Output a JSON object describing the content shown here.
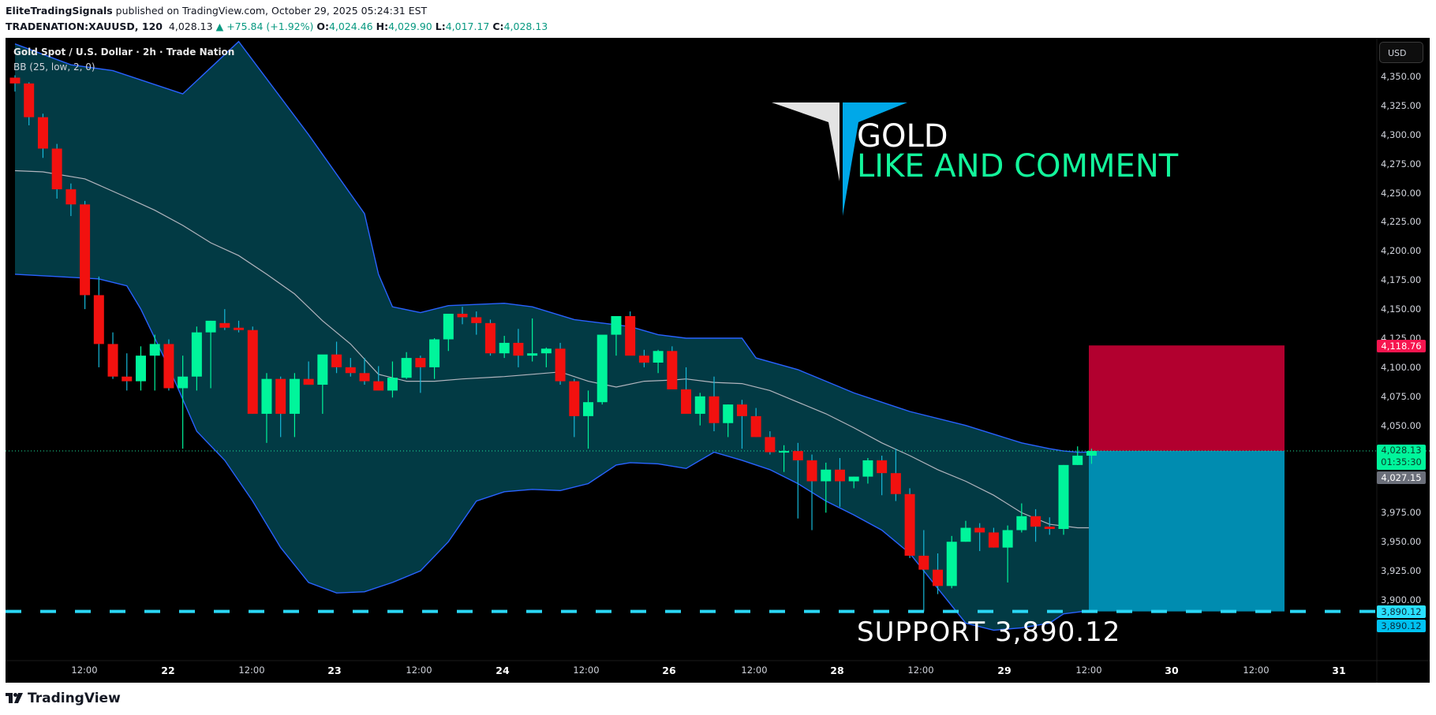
{
  "header": {
    "author": "EliteTradingSignals",
    "published": "published on TradingView.com, October 29, 2025 05:24:31 EST",
    "symbol": "TRADENATION:XAUUSD, 120",
    "last": "4,028.13",
    "change": "+75.84 (+1.92%)",
    "o_label": "O:",
    "o": "4,024.46",
    "h_label": "H:",
    "h": "4,029.90",
    "l_label": "L:",
    "l": "4,017.17",
    "c_label": "C:",
    "c": "4,028.13"
  },
  "legend": {
    "title": "Gold Spot / U.S. Dollar · 2h · Trade Nation",
    "indicator": "BB (25, low, 2, 0)"
  },
  "price_axis": {
    "currency": "USD",
    "ticks": [
      "4,350.00",
      "4,325.00",
      "4,300.00",
      "4,275.00",
      "4,250.00",
      "4,225.00",
      "4,200.00",
      "4,175.00",
      "4,150.00",
      "4,125.00",
      "4,100.00",
      "4,075.00",
      "4,050.00",
      "3,975.00",
      "3,950.00",
      "3,925.00",
      "3,900.00"
    ],
    "tags": {
      "stop": "4,118.76",
      "last_price": "4,028.13",
      "countdown": "01:35:30",
      "bb_upper": "4,027.15",
      "support_1": "3,890.12",
      "support_2": "3,890.12"
    }
  },
  "time_axis": {
    "labels": [
      "12:00",
      "22",
      "12:00",
      "23",
      "12:00",
      "24",
      "12:00",
      "26",
      "12:00",
      "28",
      "12:00",
      "29",
      "12:00",
      "30",
      "12:00",
      "31"
    ]
  },
  "overlay": {
    "logo_line1": "GOLD",
    "logo_line2": "LIKE AND COMMENT",
    "support_text": "SUPPORT   3,890.12"
  },
  "footer": {
    "brand": "TradingView"
  },
  "colors": {
    "up": "#00f59b",
    "down": "#f2110f",
    "wick": "#16b8d8",
    "bb_fill": "#023a44",
    "bb_line": "#2962ff",
    "basis": "#b2b5be",
    "stop_zone": "#b2002f",
    "target_zone": "#008cb0",
    "support_line": "#2ad7f5"
  },
  "chart_data": {
    "type": "candlestick",
    "title": "Gold Spot / U.S. Dollar · 2h · Trade Nation",
    "symbol": "TRADENATION:XAUUSD",
    "interval": "2h",
    "ylim": [
      3868,
      4370
    ],
    "yticks": [
      3900,
      3925,
      3950,
      3975,
      4050,
      4075,
      4100,
      4125,
      4150,
      4175,
      4200,
      4225,
      4250,
      4275,
      4300,
      4325,
      4350
    ],
    "xlabels": [
      "12:00",
      "22",
      "12:00",
      "23",
      "12:00",
      "24",
      "12:00",
      "26",
      "12:00",
      "28",
      "12:00",
      "29",
      "12:00",
      "30",
      "12:00",
      "31"
    ],
    "indicator": {
      "name": "Bollinger Bands",
      "params": "25, low, 2, 0"
    },
    "last_price": 4028.13,
    "change": 75.84,
    "change_pct": 1.92,
    "ohlc_last": {
      "open": 4024.46,
      "high": 4029.9,
      "low": 4017.17,
      "close": 4028.13
    },
    "annotations": [
      {
        "type": "support",
        "price": 3890.12,
        "label": "SUPPORT 3,890.12"
      },
      {
        "type": "short_position",
        "entry": 4028.13,
        "stop": 4118.76,
        "target": 3890.12
      },
      {
        "type": "text",
        "label": "GOLD"
      },
      {
        "type": "text",
        "label": "LIKE AND COMMENT"
      }
    ],
    "candles": [
      [
        4349,
        4351,
        4337,
        4344
      ],
      [
        4344,
        4345,
        4308,
        4315
      ],
      [
        4315,
        4318,
        4280,
        4288
      ],
      [
        4288,
        4292,
        4245,
        4253
      ],
      [
        4253,
        4258,
        4230,
        4240
      ],
      [
        4240,
        4243,
        4150,
        4162
      ],
      [
        4162,
        4178,
        4100,
        4120
      ],
      [
        4120,
        4130,
        4090,
        4092
      ],
      [
        4092,
        4112,
        4080,
        4088
      ],
      [
        4088,
        4118,
        4080,
        4110
      ],
      [
        4110,
        4128,
        4080,
        4120
      ],
      [
        4120,
        4124,
        4080,
        4082
      ],
      [
        4082,
        4110,
        4030,
        4092
      ],
      [
        4092,
        4135,
        4080,
        4130
      ],
      [
        4130,
        4140,
        4082,
        4140
      ],
      [
        4138,
        4150,
        4132,
        4134
      ],
      [
        4134,
        4140,
        4130,
        4132
      ],
      [
        4132,
        4135,
        4060,
        4060
      ],
      [
        4060,
        4095,
        4035,
        4090
      ],
      [
        4090,
        4092,
        4040,
        4060
      ],
      [
        4060,
        4095,
        4040,
        4090
      ],
      [
        4090,
        4105,
        4085,
        4085
      ],
      [
        4085,
        4110,
        4060,
        4111
      ],
      [
        4111,
        4122,
        4095,
        4100
      ],
      [
        4100,
        4108,
        4092,
        4095
      ],
      [
        4095,
        4108,
        4085,
        4088
      ],
      [
        4088,
        4101,
        4084,
        4080
      ],
      [
        4080,
        4105,
        4074,
        4091
      ],
      [
        4091,
        4113,
        4090,
        4108
      ],
      [
        4108,
        4110,
        4078,
        4100
      ],
      [
        4100,
        4125,
        4090,
        4124
      ],
      [
        4124,
        4135,
        4114,
        4146
      ],
      [
        4146,
        4152,
        4137,
        4143
      ],
      [
        4143,
        4148,
        4128,
        4138
      ],
      [
        4138,
        4141,
        4110,
        4112
      ],
      [
        4112,
        4127,
        4108,
        4121
      ],
      [
        4121,
        4133,
        4100,
        4110
      ],
      [
        4110,
        4142,
        4105,
        4112
      ],
      [
        4112,
        4117,
        4100,
        4116
      ],
      [
        4116,
        4121,
        4085,
        4088
      ],
      [
        4088,
        4090,
        4040,
        4058
      ],
      [
        4058,
        4080,
        4030,
        4070
      ],
      [
        4070,
        4126,
        4068,
        4128
      ],
      [
        4128,
        4144,
        4110,
        4144
      ],
      [
        4144,
        4148,
        4118,
        4110
      ],
      [
        4110,
        4115,
        4100,
        4104
      ],
      [
        4104,
        4115,
        4095,
        4114
      ],
      [
        4114,
        4118,
        4083,
        4081
      ],
      [
        4081,
        4100,
        4063,
        4060
      ],
      [
        4060,
        4078,
        4050,
        4075
      ],
      [
        4075,
        4092,
        4045,
        4052
      ],
      [
        4052,
        4068,
        4040,
        4068
      ],
      [
        4068,
        4072,
        4030,
        4058
      ],
      [
        4058,
        4065,
        4040,
        4040
      ],
      [
        4040,
        4045,
        4025,
        4027
      ],
      [
        4027,
        4033,
        4010,
        4028
      ],
      [
        4028,
        4035,
        3970,
        4020
      ],
      [
        4020,
        4025,
        3960,
        4002
      ],
      [
        4002,
        4018,
        3975,
        4012
      ],
      [
        4012,
        4022,
        3980,
        4002
      ],
      [
        4002,
        4006,
        3996,
        4006
      ],
      [
        4006,
        4022,
        4000,
        4020
      ],
      [
        4020,
        4024,
        3990,
        4009
      ],
      [
        4009,
        4030,
        3985,
        3991
      ],
      [
        3991,
        3996,
        3936,
        3938
      ],
      [
        3938,
        3960,
        3890,
        3926
      ],
      [
        3926,
        3940,
        3905,
        3912
      ],
      [
        3912,
        3955,
        3910,
        3950
      ],
      [
        3950,
        3968,
        3950,
        3962
      ],
      [
        3962,
        3966,
        3942,
        3958
      ],
      [
        3958,
        3962,
        3945,
        3945
      ],
      [
        3945,
        3964,
        3915,
        3960
      ],
      [
        3960,
        3983,
        3958,
        3972
      ],
      [
        3972,
        3978,
        3950,
        3963
      ],
      [
        3963,
        3971,
        3956,
        3961
      ],
      [
        3961,
        4016,
        3956,
        4016
      ],
      [
        4016,
        4032,
        4016,
        4024
      ],
      [
        4024,
        4030,
        4017,
        4028
      ]
    ]
  }
}
